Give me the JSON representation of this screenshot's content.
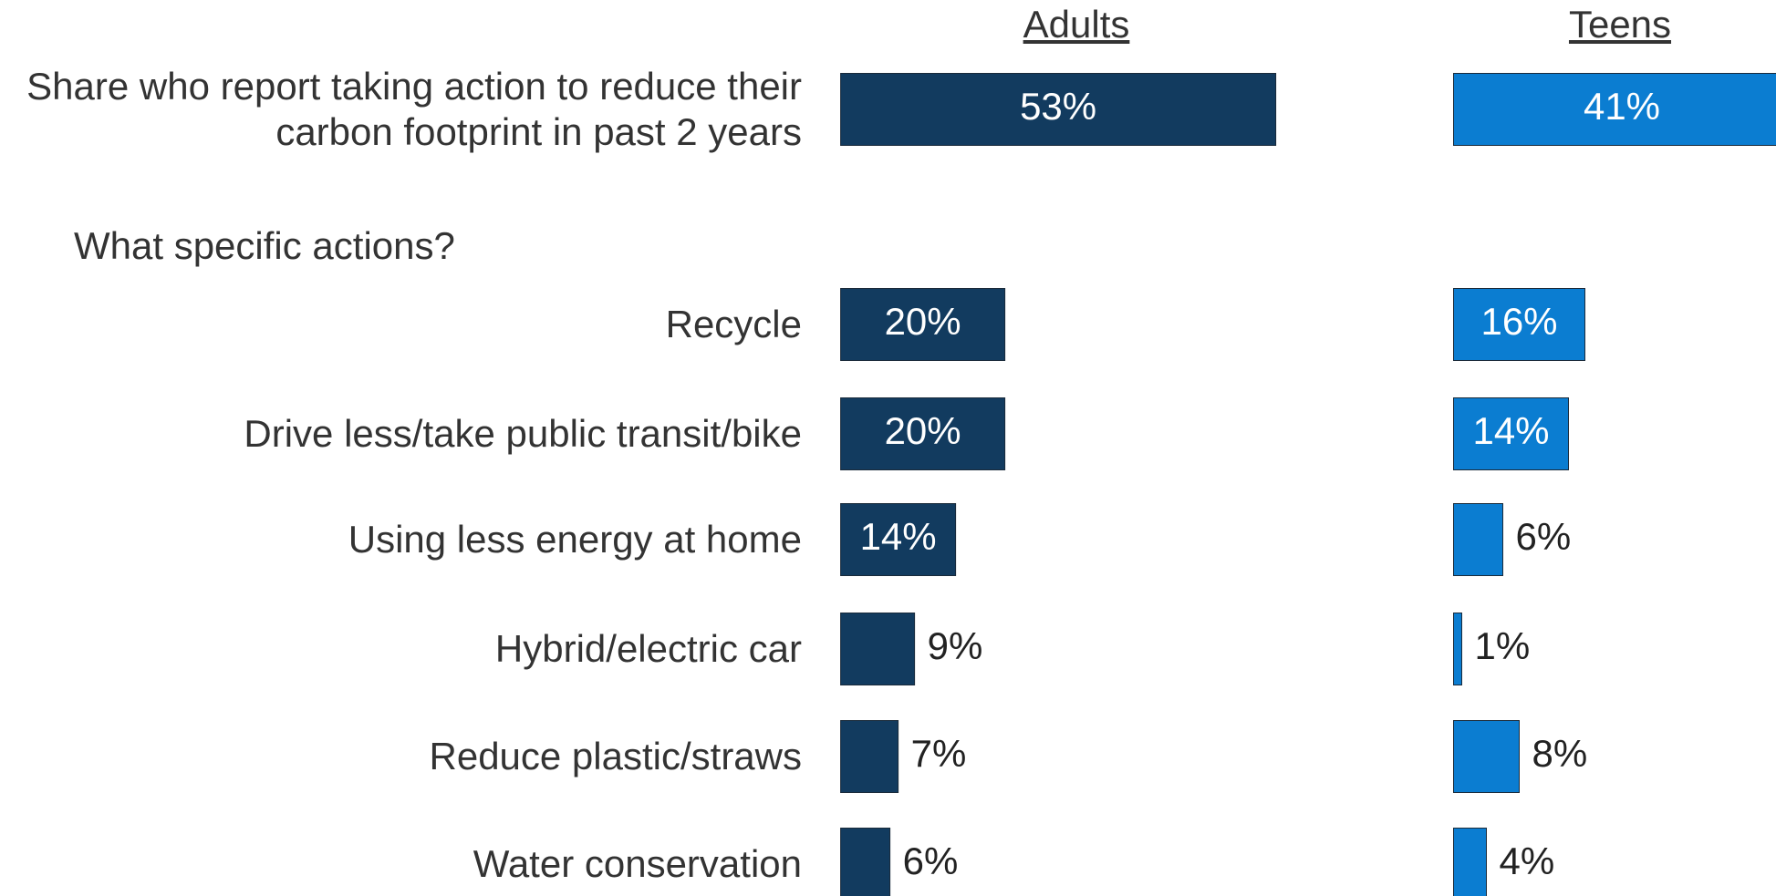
{
  "chart_data": {
    "type": "bar",
    "annotation": "What specific actions?",
    "categories": [
      "Share who report taking action to reduce their carbon footprint in past 2 years",
      null,
      "Recycle",
      "Drive less/take public transit/bike",
      "Using less energy at home",
      "Hybrid/electric car",
      "Reduce plastic/straws",
      "Water conservation"
    ],
    "series": [
      {
        "name": "Adults",
        "color": "#123b5f",
        "values": [
          53,
          null,
          20,
          20,
          14,
          9,
          7,
          6
        ],
        "value_labels": [
          "53%",
          null,
          "20%",
          "20%",
          "14%",
          "9%",
          "7%",
          "6%"
        ]
      },
      {
        "name": "Teens",
        "color": "#0b7dd1",
        "values": [
          41,
          null,
          16,
          14,
          6,
          1,
          8,
          4
        ],
        "value_labels": [
          "41%",
          null,
          "16%",
          "14%",
          "6%",
          "1%",
          "8%",
          "4%"
        ]
      }
    ]
  }
}
